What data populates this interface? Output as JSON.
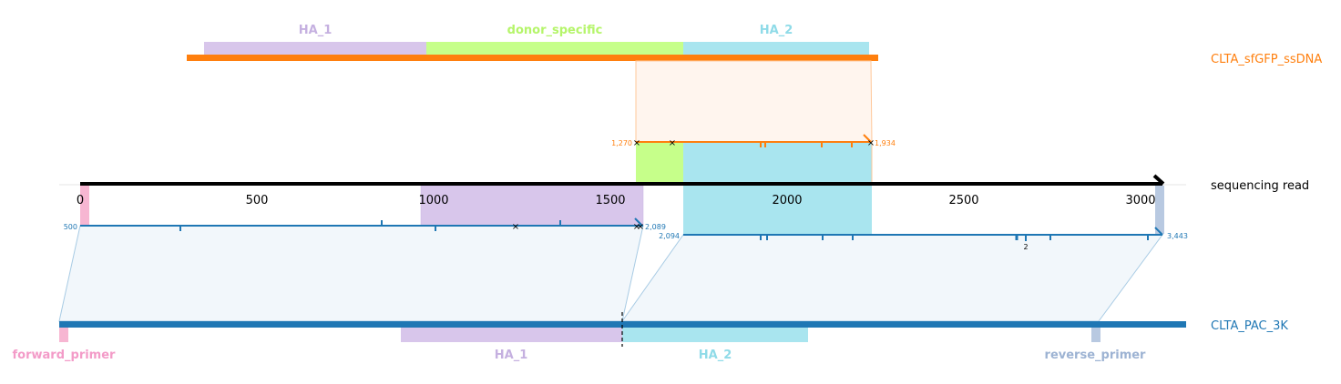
{
  "top_track": {
    "name": "CLTA_sfGFP_ssDNA",
    "color": "#ff7f0e",
    "features": [
      {
        "label": "HA_1",
        "color": "#d8c6eb",
        "text_color": "#c5b0e0"
      },
      {
        "label": "donor_specific",
        "color": "#c6ff8a",
        "text_color": "#b5f56a"
      },
      {
        "label": "HA_2",
        "color": "#a9e5ef",
        "text_color": "#8fdbe8"
      }
    ],
    "alignment": {
      "start_label": "1,270",
      "end_label": "1,934"
    }
  },
  "read_track": {
    "name": "sequencing read",
    "axis_ticks": [
      "0",
      "500",
      "1000",
      "1500",
      "2000",
      "2500",
      "3000"
    ]
  },
  "bottom_track": {
    "name": "CLTA_PAC_3K",
    "color": "#1f77b4",
    "features": [
      {
        "label": "forward_primer",
        "color": "#f7b6d2",
        "text_color": "#f39bc8"
      },
      {
        "label": "HA_1",
        "color": "#d8c6eb",
        "text_color": "#c5b0e0"
      },
      {
        "label": "HA_2",
        "color": "#a9e5ef",
        "text_color": "#8fdbe8"
      },
      {
        "label": "reverse_primer",
        "color": "#b8c9e1",
        "text_color": "#9db3d3"
      }
    ],
    "alignment1": {
      "start_label": "500",
      "end_label": "2,089"
    },
    "alignment2": {
      "start_label": "2,094",
      "end_label": "3,443",
      "mid_label": "2"
    }
  }
}
